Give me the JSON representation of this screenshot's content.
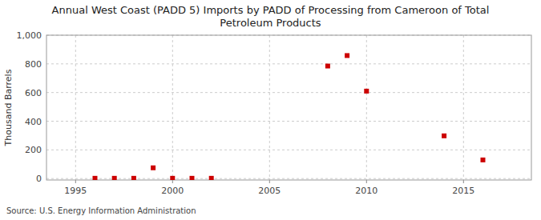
{
  "chart_data": {
    "type": "scatter",
    "title": "Annual West Coast (PADD 5) Imports by PADD of Processing from Cameroon of Total\nPetroleum Products",
    "ylabel": "Thousand Barrels",
    "source": "Source: U.S. Energy Information Administration",
    "x": [
      1996,
      1997,
      1998,
      1999,
      2000,
      2001,
      2002,
      2008,
      2009,
      2010,
      2014,
      2016
    ],
    "values": [
      2,
      2,
      2,
      75,
      2,
      2,
      2,
      785,
      858,
      610,
      298,
      130
    ],
    "color": "#cc0000",
    "marker": "square",
    "xlim": [
      1993.5,
      2018.5
    ],
    "ylim": [
      -10,
      1000
    ],
    "xticks": [
      1995,
      2000,
      2005,
      2010,
      2015
    ],
    "yticks": [
      0,
      200,
      400,
      600,
      800,
      {
        "value": 1000,
        "label": "1,000"
      }
    ],
    "grid": true
  }
}
